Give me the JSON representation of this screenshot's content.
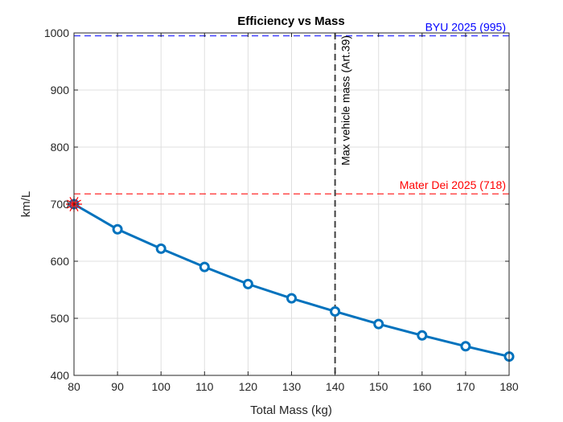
{
  "chart_data": {
    "type": "line",
    "title": "Efficiency vs Mass",
    "xlabel": "Total Mass (kg)",
    "ylabel": "km/L",
    "xlim": [
      80,
      180
    ],
    "ylim": [
      400,
      1000
    ],
    "xticks": [
      80,
      90,
      100,
      110,
      120,
      130,
      140,
      150,
      160,
      170,
      180
    ],
    "yticks": [
      400,
      500,
      600,
      700,
      800,
      900,
      1000
    ],
    "grid": true,
    "series": [
      {
        "x": [
          80,
          90,
          100,
          110,
          120,
          130,
          140,
          150,
          160,
          170,
          180
        ],
        "y": [
          700,
          656,
          622,
          590,
          560,
          535,
          512,
          490,
          470,
          451,
          433
        ],
        "color": "#0072BD",
        "marker": "circle"
      }
    ],
    "highlight_point": {
      "x": 80,
      "y": 700,
      "color": "#FF0000",
      "marker": "hexagram"
    },
    "reference_lines": [
      {
        "orientation": "horizontal",
        "value": 995,
        "label": "BYU 2025 (995)",
        "color": "#0000FF",
        "style": "dashed"
      },
      {
        "orientation": "horizontal",
        "value": 718,
        "label": "Mater Dei 2025 (718)",
        "color": "#FF0000",
        "style": "dashed"
      },
      {
        "orientation": "vertical",
        "value": 140,
        "label": "Max vehicle mass (Art.39)",
        "color": "#404040",
        "style": "dashed"
      }
    ]
  }
}
